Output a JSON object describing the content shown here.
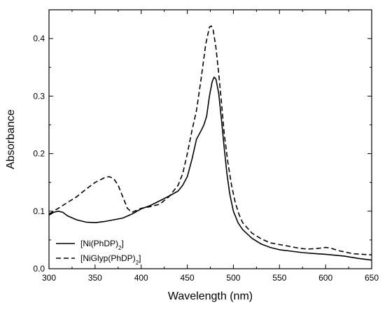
{
  "chart_data": {
    "type": "line",
    "xlabel": "Wavelength (nm)",
    "ylabel": "Absorbance",
    "xlim": [
      300,
      650
    ],
    "ylim": [
      0.0,
      0.45
    ],
    "x_ticks": [
      300,
      350,
      400,
      450,
      500,
      550,
      600,
      650
    ],
    "x_tick_labels": [
      "300",
      "350",
      "400",
      "450",
      "500",
      "550",
      "600",
      "650"
    ],
    "y_ticks": [
      0.0,
      0.1,
      0.2,
      0.3,
      0.4
    ],
    "y_tick_labels": [
      "0.0",
      "0.1",
      "0.2",
      "0.3",
      "0.4"
    ],
    "grid": false,
    "legend_position": "bottom-left",
    "series": [
      {
        "name_prefix": "[Ni(PhDP)",
        "name_sub": "2",
        "name_suffix": "]",
        "style": "solid",
        "color": "#000000",
        "points": [
          [
            300,
            0.093
          ],
          [
            305,
            0.098
          ],
          [
            310,
            0.1
          ],
          [
            315,
            0.098
          ],
          [
            320,
            0.092
          ],
          [
            330,
            0.085
          ],
          [
            340,
            0.081
          ],
          [
            350,
            0.08
          ],
          [
            360,
            0.082
          ],
          [
            370,
            0.085
          ],
          [
            380,
            0.088
          ],
          [
            390,
            0.095
          ],
          [
            400,
            0.104
          ],
          [
            410,
            0.11
          ],
          [
            420,
            0.118
          ],
          [
            430,
            0.126
          ],
          [
            440,
            0.135
          ],
          [
            445,
            0.145
          ],
          [
            450,
            0.16
          ],
          [
            455,
            0.19
          ],
          [
            460,
            0.225
          ],
          [
            465,
            0.24
          ],
          [
            468,
            0.25
          ],
          [
            471,
            0.265
          ],
          [
            474,
            0.3
          ],
          [
            477,
            0.325
          ],
          [
            479,
            0.333
          ],
          [
            481,
            0.33
          ],
          [
            484,
            0.305
          ],
          [
            487,
            0.26
          ],
          [
            490,
            0.21
          ],
          [
            493,
            0.165
          ],
          [
            496,
            0.13
          ],
          [
            500,
            0.1
          ],
          [
            505,
            0.08
          ],
          [
            510,
            0.068
          ],
          [
            520,
            0.053
          ],
          [
            530,
            0.043
          ],
          [
            540,
            0.037
          ],
          [
            550,
            0.033
          ],
          [
            560,
            0.031
          ],
          [
            575,
            0.028
          ],
          [
            590,
            0.026
          ],
          [
            600,
            0.025
          ],
          [
            620,
            0.022
          ],
          [
            635,
            0.018
          ],
          [
            650,
            0.015
          ]
        ]
      },
      {
        "name_prefix": "[NiGlyp(PhDP)",
        "name_sub": "2",
        "name_suffix": "]",
        "style": "dashed",
        "color": "#000000",
        "points": [
          [
            300,
            0.095
          ],
          [
            310,
            0.105
          ],
          [
            320,
            0.115
          ],
          [
            330,
            0.125
          ],
          [
            340,
            0.138
          ],
          [
            350,
            0.15
          ],
          [
            360,
            0.158
          ],
          [
            365,
            0.16
          ],
          [
            370,
            0.157
          ],
          [
            375,
            0.145
          ],
          [
            380,
            0.125
          ],
          [
            385,
            0.105
          ],
          [
            390,
            0.098
          ],
          [
            400,
            0.105
          ],
          [
            410,
            0.108
          ],
          [
            420,
            0.112
          ],
          [
            430,
            0.125
          ],
          [
            440,
            0.145
          ],
          [
            445,
            0.165
          ],
          [
            450,
            0.2
          ],
          [
            455,
            0.24
          ],
          [
            460,
            0.275
          ],
          [
            465,
            0.33
          ],
          [
            470,
            0.39
          ],
          [
            474,
            0.42
          ],
          [
            476,
            0.422
          ],
          [
            478,
            0.415
          ],
          [
            481,
            0.385
          ],
          [
            484,
            0.34
          ],
          [
            487,
            0.29
          ],
          [
            490,
            0.235
          ],
          [
            494,
            0.185
          ],
          [
            498,
            0.145
          ],
          [
            502,
            0.115
          ],
          [
            506,
            0.095
          ],
          [
            510,
            0.08
          ],
          [
            520,
            0.062
          ],
          [
            530,
            0.052
          ],
          [
            540,
            0.045
          ],
          [
            550,
            0.042
          ],
          [
            560,
            0.039
          ],
          [
            570,
            0.036
          ],
          [
            580,
            0.034
          ],
          [
            590,
            0.035
          ],
          [
            600,
            0.037
          ],
          [
            605,
            0.036
          ],
          [
            615,
            0.031
          ],
          [
            630,
            0.026
          ],
          [
            650,
            0.024
          ]
        ]
      }
    ]
  }
}
